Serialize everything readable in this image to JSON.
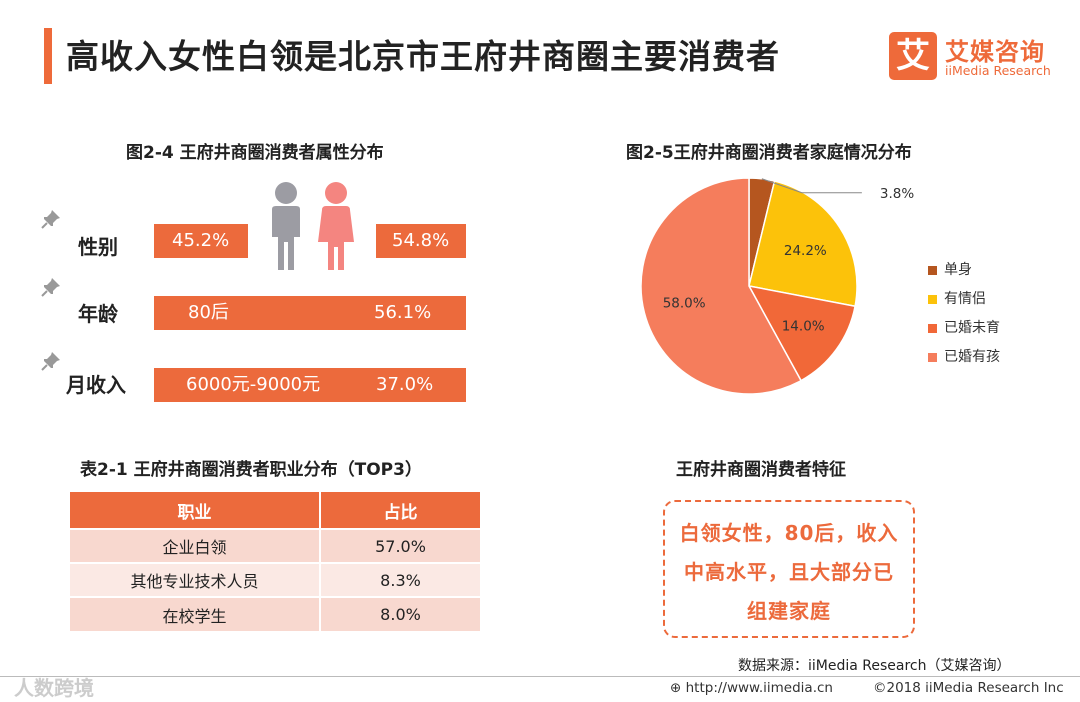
{
  "header": {
    "title": "高收入女性白领是北京市王府井商圈主要消费者",
    "logo_mark": "艾",
    "logo_cn": "艾媒咨询",
    "logo_en": "iiMedia Research"
  },
  "fig24": {
    "title": "图2-4 王府井商圈消费者属性分布",
    "rows": [
      {
        "label": "性别",
        "left": "45.2%",
        "right": "54.8%"
      },
      {
        "label": "年龄",
        "left": "80后",
        "right": "56.1%"
      },
      {
        "label": "月收入",
        "left": "6000元-9000元",
        "right": "37.0%"
      }
    ]
  },
  "chart_data": {
    "type": "pie",
    "title": "图2-5王府井商圈消费者家庭情况分布",
    "slices": [
      {
        "name": "单身",
        "value": 3.8,
        "label": "3.8%",
        "color": "#b5561f"
      },
      {
        "name": "有情侣",
        "value": 24.2,
        "label": "24.2%",
        "color": "#fcc20a"
      },
      {
        "name": "已婚未育",
        "value": 14.0,
        "label": "14.0%",
        "color": "#f16838"
      },
      {
        "name": "已婚有孩",
        "value": 58.0,
        "label": "58.0%",
        "color": "#f57d5c"
      }
    ],
    "legend_position": "right"
  },
  "table21": {
    "title": "表2-1 王府井商圈消费者职业分布（TOP3）",
    "headers": [
      "职业",
      "占比"
    ],
    "rows": [
      [
        "企业白领",
        "57.0%"
      ],
      [
        "其他专业技术人员",
        "8.3%"
      ],
      [
        "在校学生",
        "8.0%"
      ]
    ]
  },
  "features": {
    "title": "王府井商圈消费者特征",
    "text": "白领女性，80后，收入中高水平，且大部分已组建家庭"
  },
  "footer": {
    "source": "数据来源：iiMedia Research（艾媒咨询）",
    "url": "http://www.iimedia.cn",
    "copyright": "©2018 iiMedia Research Inc",
    "watermark": "人数跨境"
  },
  "colors": {
    "accent": "#ec6a3c",
    "male_icon": "#9c9ca3",
    "female_icon": "#f48580"
  }
}
